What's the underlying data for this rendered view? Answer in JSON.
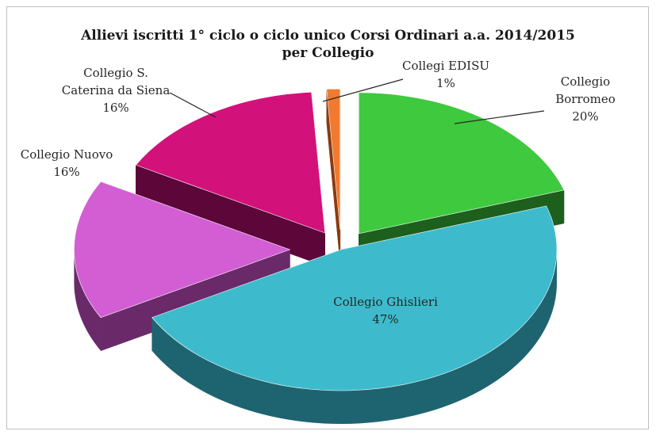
{
  "chart_data": {
    "type": "pie",
    "title": "Allievi iscritti 1° ciclo o ciclo unico Corsi Ordinari a.a. 2014/2015",
    "subtitle": "per Collegio",
    "slices": [
      {
        "label_lines": [
          "Collegio",
          "Borromeo"
        ],
        "value_text": "20%",
        "value": 20,
        "color": "#3ec93e",
        "side_color": "#1d5f1d"
      },
      {
        "label_lines": [
          "Collegio Ghislieri"
        ],
        "value_text": "47%",
        "value": 47,
        "color": "#3dbbcc",
        "side_color": "#1e6470"
      },
      {
        "label_lines": [
          "Collegio Nuovo"
        ],
        "value_text": "16%",
        "value": 16,
        "color": "#d35ed3",
        "side_color": "#6a2a6a"
      },
      {
        "label_lines": [
          "Collegio S.",
          "Caterina da Siena"
        ],
        "value_text": "16%",
        "value": 16,
        "color": "#d2117b",
        "side_color": "#5c063a"
      },
      {
        "label_lines": [
          "Collegi EDISU"
        ],
        "value_text": "1%",
        "value": 1,
        "color": "#f07a30",
        "side_color": "#8a3a10"
      }
    ]
  }
}
